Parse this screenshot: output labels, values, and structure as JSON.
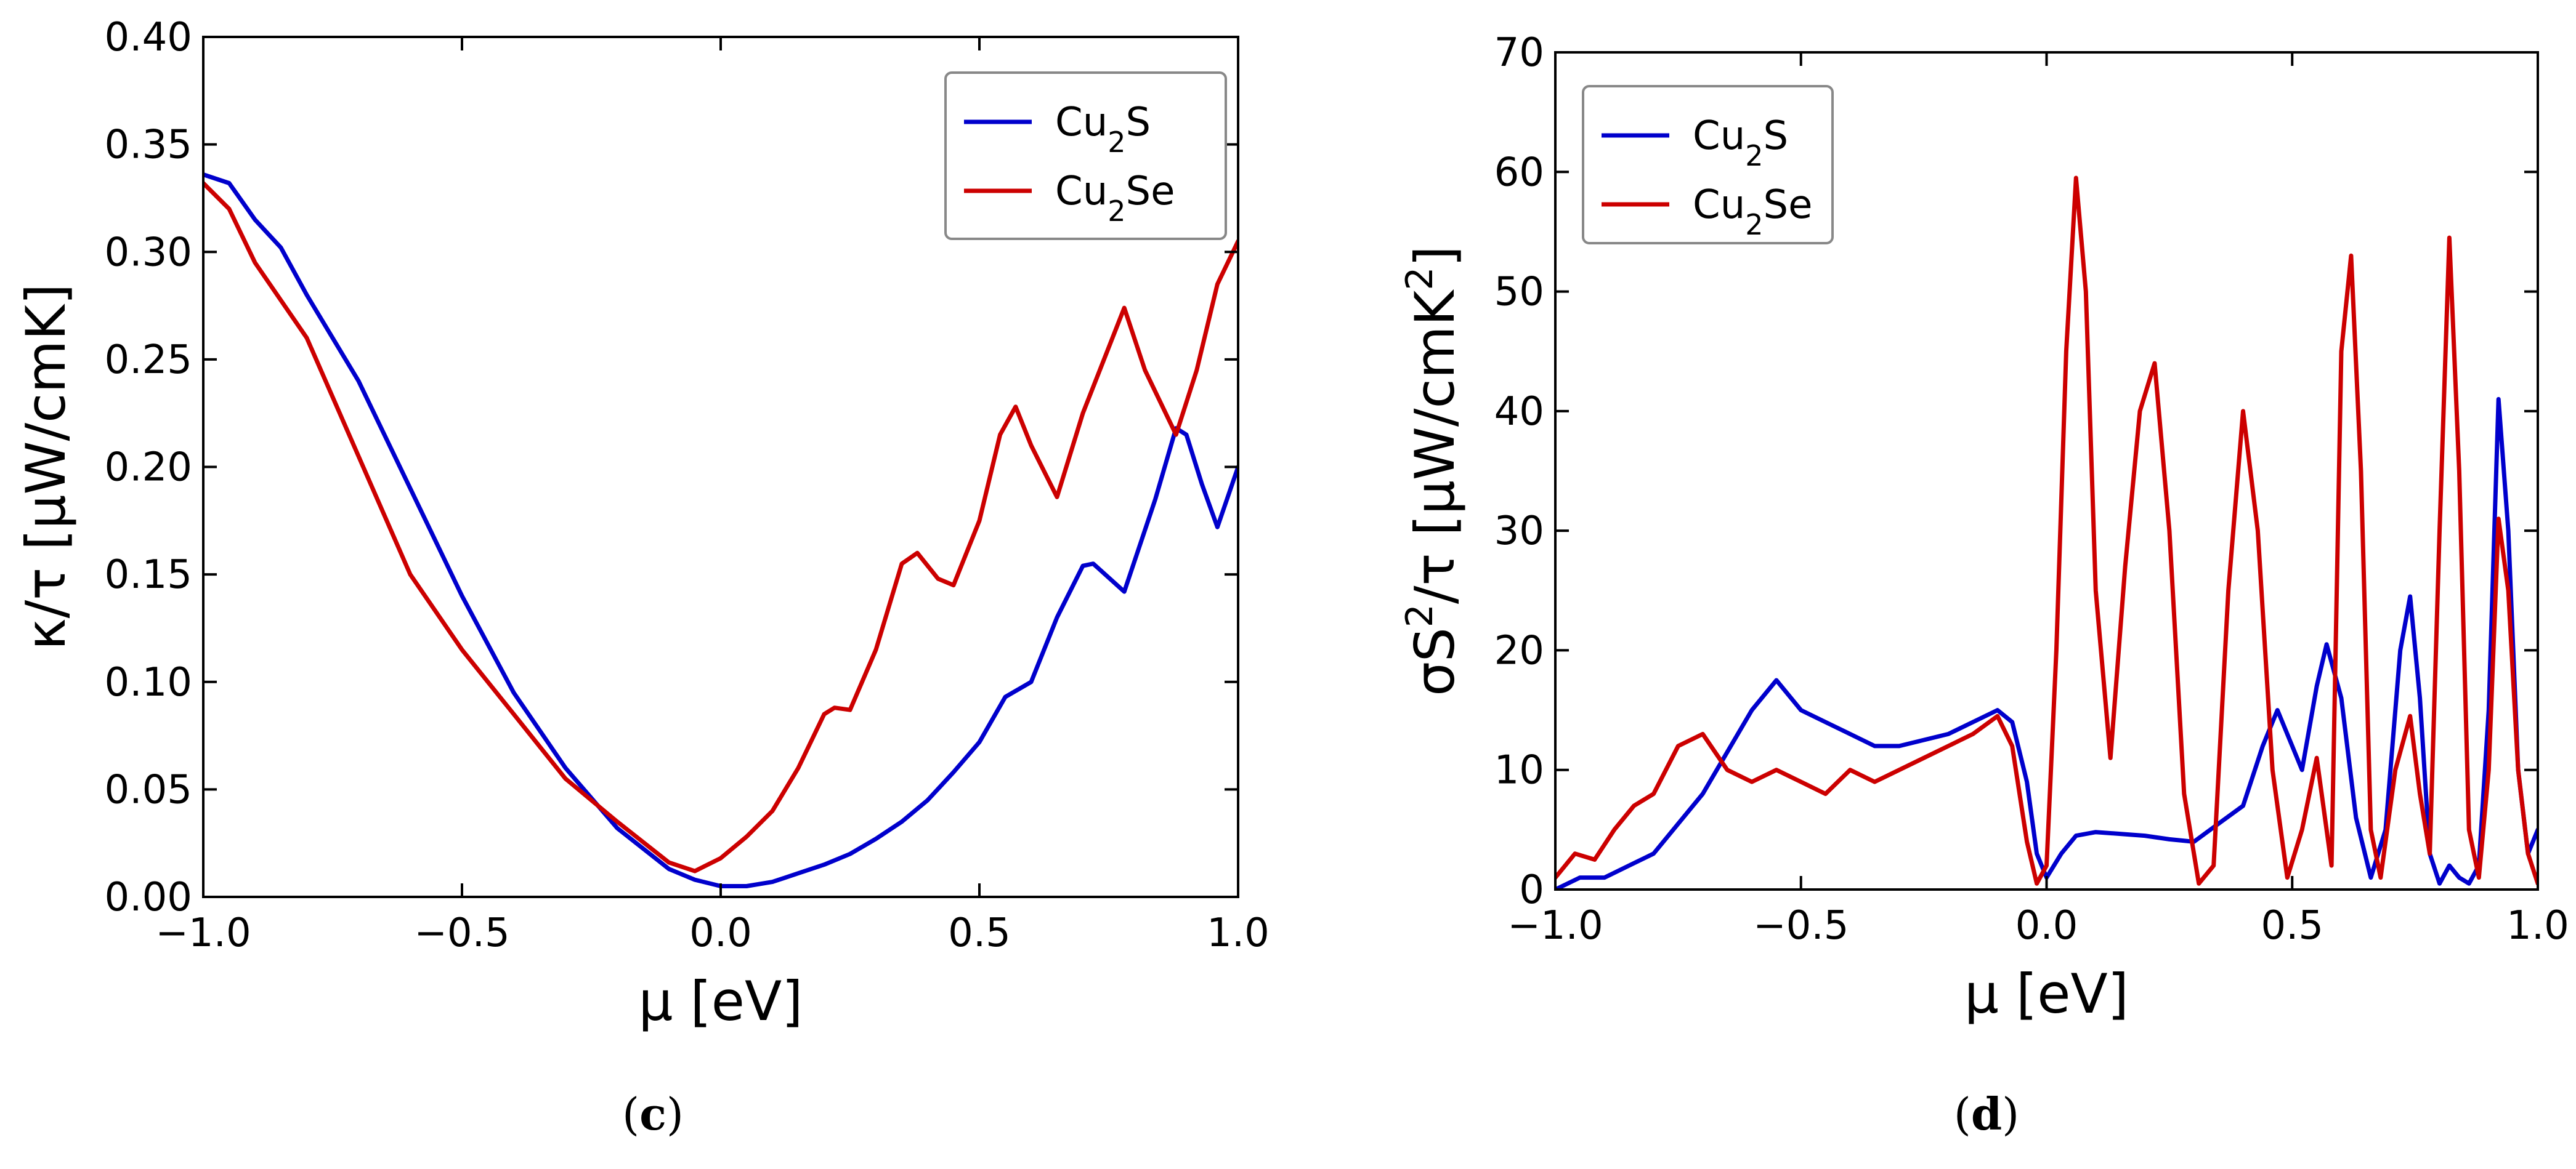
{
  "chart_data": [
    {
      "type": "line",
      "panel": "c",
      "xlabel": "μ [eV]",
      "ylabel": "κ/τ [μW/cmK]",
      "xlim": [
        -1.0,
        1.0
      ],
      "ylim": [
        0.0,
        0.4
      ],
      "xticks": [
        "−1.0",
        "−0.5",
        "0.0",
        "0.5",
        "1.0"
      ],
      "yticks": [
        "0.00",
        "0.05",
        "0.10",
        "0.15",
        "0.20",
        "0.25",
        "0.30",
        "0.35",
        "0.40"
      ],
      "legend": "top-right",
      "caption": {
        "open": "(",
        "letter": "c",
        "close": ")"
      },
      "series": [
        {
          "name": "Cu₂S",
          "name_base": "Cu",
          "name_sub": "2",
          "name_tail": "S",
          "color": "#0000cc",
          "x": [
            -1.0,
            -0.95,
            -0.9,
            -0.85,
            -0.8,
            -0.7,
            -0.6,
            -0.5,
            -0.4,
            -0.3,
            -0.2,
            -0.1,
            -0.05,
            0.0,
            0.05,
            0.1,
            0.15,
            0.2,
            0.25,
            0.3,
            0.35,
            0.4,
            0.45,
            0.5,
            0.55,
            0.6,
            0.65,
            0.7,
            0.72,
            0.78,
            0.84,
            0.88,
            0.9,
            0.93,
            0.96,
            1.0
          ],
          "y": [
            0.336,
            0.332,
            0.315,
            0.302,
            0.28,
            0.24,
            0.19,
            0.14,
            0.095,
            0.06,
            0.032,
            0.013,
            0.008,
            0.005,
            0.005,
            0.007,
            0.011,
            0.015,
            0.02,
            0.027,
            0.035,
            0.045,
            0.058,
            0.072,
            0.093,
            0.1,
            0.13,
            0.154,
            0.155,
            0.142,
            0.185,
            0.218,
            0.215,
            0.192,
            0.172,
            0.2
          ]
        },
        {
          "name": "Cu₂Se",
          "name_base": "Cu",
          "name_sub": "2",
          "name_tail": "Se",
          "color": "#cc0000",
          "x": [
            -1.0,
            -0.95,
            -0.9,
            -0.8,
            -0.7,
            -0.6,
            -0.5,
            -0.4,
            -0.3,
            -0.2,
            -0.1,
            -0.05,
            0.0,
            0.05,
            0.1,
            0.15,
            0.2,
            0.22,
            0.25,
            0.3,
            0.35,
            0.38,
            0.42,
            0.45,
            0.5,
            0.54,
            0.57,
            0.6,
            0.65,
            0.7,
            0.78,
            0.82,
            0.88,
            0.92,
            0.96,
            1.0
          ],
          "y": [
            0.332,
            0.32,
            0.295,
            0.26,
            0.205,
            0.15,
            0.115,
            0.085,
            0.055,
            0.035,
            0.016,
            0.012,
            0.018,
            0.028,
            0.04,
            0.06,
            0.085,
            0.088,
            0.087,
            0.115,
            0.155,
            0.16,
            0.148,
            0.145,
            0.175,
            0.215,
            0.228,
            0.21,
            0.186,
            0.225,
            0.274,
            0.245,
            0.215,
            0.245,
            0.285,
            0.305
          ]
        }
      ]
    },
    {
      "type": "line",
      "panel": "d",
      "xlabel": "μ [eV]",
      "ylabel_base": "σS",
      "ylabel_sup": "2",
      "ylabel_mid": "/τ [μW/cmK",
      "ylabel_sup2": "2",
      "ylabel_end": "]",
      "xlim": [
        -1.0,
        1.0
      ],
      "ylim": [
        0,
        70
      ],
      "xticks": [
        "−1.0",
        "−0.5",
        "0.0",
        "0.5",
        "1.0"
      ],
      "yticks": [
        "0",
        "10",
        "20",
        "30",
        "40",
        "50",
        "60",
        "70"
      ],
      "legend": "top-left",
      "caption": {
        "open": "(",
        "letter": "d",
        "close": ")"
      },
      "series": [
        {
          "name": "Cu₂S",
          "name_base": "Cu",
          "name_sub": "2",
          "name_tail": "S",
          "color": "#0000cc",
          "x": [
            -1.0,
            -0.95,
            -0.9,
            -0.85,
            -0.8,
            -0.7,
            -0.6,
            -0.55,
            -0.5,
            -0.45,
            -0.4,
            -0.35,
            -0.3,
            -0.25,
            -0.2,
            -0.15,
            -0.1,
            -0.07,
            -0.04,
            -0.02,
            0.0,
            0.03,
            0.06,
            0.1,
            0.2,
            0.25,
            0.3,
            0.35,
            0.4,
            0.44,
            0.47,
            0.5,
            0.52,
            0.55,
            0.57,
            0.6,
            0.63,
            0.66,
            0.69,
            0.72,
            0.74,
            0.76,
            0.78,
            0.8,
            0.82,
            0.84,
            0.86,
            0.88,
            0.9,
            0.92,
            0.94,
            0.96,
            0.98,
            1.0
          ],
          "y": [
            0,
            1,
            1,
            2,
            3,
            8,
            15,
            17.5,
            15,
            14,
            13,
            12,
            12,
            12.5,
            13,
            14,
            15,
            14,
            9,
            3,
            1,
            3,
            4.5,
            4.8,
            4.5,
            4.2,
            4.0,
            5.5,
            7,
            12,
            15,
            12,
            10,
            17,
            20.5,
            16,
            6,
            1,
            5,
            20,
            24.5,
            16,
            3,
            0.5,
            2,
            1,
            0.5,
            2,
            15,
            41,
            30,
            10,
            3,
            5
          ]
        },
        {
          "name": "Cu₂Se",
          "name_base": "Cu",
          "name_sub": "2",
          "name_tail": "Se",
          "color": "#cc0000",
          "x": [
            -1.0,
            -0.96,
            -0.92,
            -0.88,
            -0.84,
            -0.8,
            -0.75,
            -0.7,
            -0.65,
            -0.6,
            -0.55,
            -0.5,
            -0.45,
            -0.4,
            -0.35,
            -0.3,
            -0.25,
            -0.2,
            -0.15,
            -0.1,
            -0.07,
            -0.04,
            -0.02,
            0.0,
            0.02,
            0.04,
            0.06,
            0.08,
            0.1,
            0.13,
            0.16,
            0.19,
            0.22,
            0.25,
            0.28,
            0.31,
            0.34,
            0.37,
            0.4,
            0.43,
            0.46,
            0.49,
            0.52,
            0.55,
            0.58,
            0.6,
            0.62,
            0.64,
            0.66,
            0.68,
            0.71,
            0.74,
            0.76,
            0.78,
            0.8,
            0.82,
            0.84,
            0.86,
            0.88,
            0.9,
            0.92,
            0.94,
            0.96,
            0.98,
            1.0
          ],
          "y": [
            1,
            3,
            2.5,
            5,
            7,
            8,
            12,
            13,
            10,
            9,
            10,
            9,
            8,
            10,
            9,
            10,
            11,
            12,
            13,
            14.5,
            12,
            4,
            0.5,
            2,
            20,
            45,
            59.5,
            50,
            25,
            11,
            27,
            40,
            44,
            30,
            8,
            0.5,
            2,
            25,
            40,
            30,
            10,
            1,
            5,
            11,
            2,
            45,
            53,
            35,
            5,
            1,
            10,
            14.5,
            8,
            3,
            30,
            54.5,
            35,
            5,
            1,
            10,
            31,
            25,
            10,
            3,
            0.5
          ]
        }
      ]
    }
  ]
}
